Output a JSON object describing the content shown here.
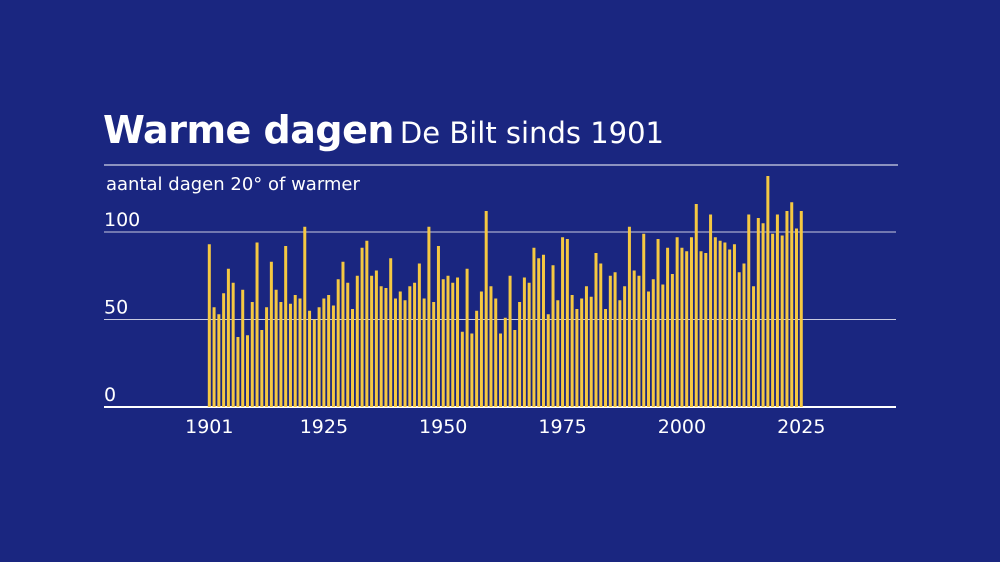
{
  "title": "Warme dagen",
  "subtitle": "De Bilt sinds 1901",
  "colors": {
    "background": "#1a2680",
    "bar": "#f5c842",
    "grid": "#c9cbe0",
    "text": "#ffffff"
  },
  "chart_data": {
    "type": "bar",
    "title": "Warme dagen",
    "subtitle": "De Bilt sinds 1901",
    "ylabel": "aantal dagen 20° of warmer",
    "xlabel": "",
    "ylim": [
      0,
      130
    ],
    "xlim": [
      1880,
      2045
    ],
    "yticks": [
      0,
      50,
      100
    ],
    "xticks": [
      1901,
      1925,
      1950,
      1975,
      2000,
      2025
    ],
    "grid": true,
    "start_year": 1901,
    "values": [
      93,
      57,
      53,
      65,
      79,
      71,
      40,
      67,
      41,
      60,
      94,
      44,
      57,
      83,
      67,
      60,
      92,
      59,
      64,
      62,
      103,
      55,
      50,
      57,
      62,
      64,
      58,
      73,
      83,
      71,
      56,
      75,
      91,
      95,
      75,
      78,
      69,
      68,
      85,
      62,
      66,
      61,
      69,
      71,
      82,
      62,
      103,
      60,
      92,
      73,
      75,
      71,
      74,
      43,
      79,
      42,
      55,
      66,
      112,
      69,
      62,
      42,
      51,
      75,
      44,
      60,
      74,
      71,
      91,
      85,
      87,
      53,
      81,
      61,
      97,
      96,
      64,
      56,
      62,
      69,
      63,
      88,
      82,
      56,
      75,
      77,
      61,
      69,
      103,
      78,
      75,
      99,
      66,
      73,
      96,
      70,
      91,
      76,
      97,
      91,
      89,
      97,
      116,
      89,
      88,
      110,
      97,
      95,
      94,
      90,
      93,
      77,
      82,
      110,
      69,
      108,
      105,
      132,
      99,
      110,
      98,
      112,
      117,
      102,
      112
    ]
  }
}
